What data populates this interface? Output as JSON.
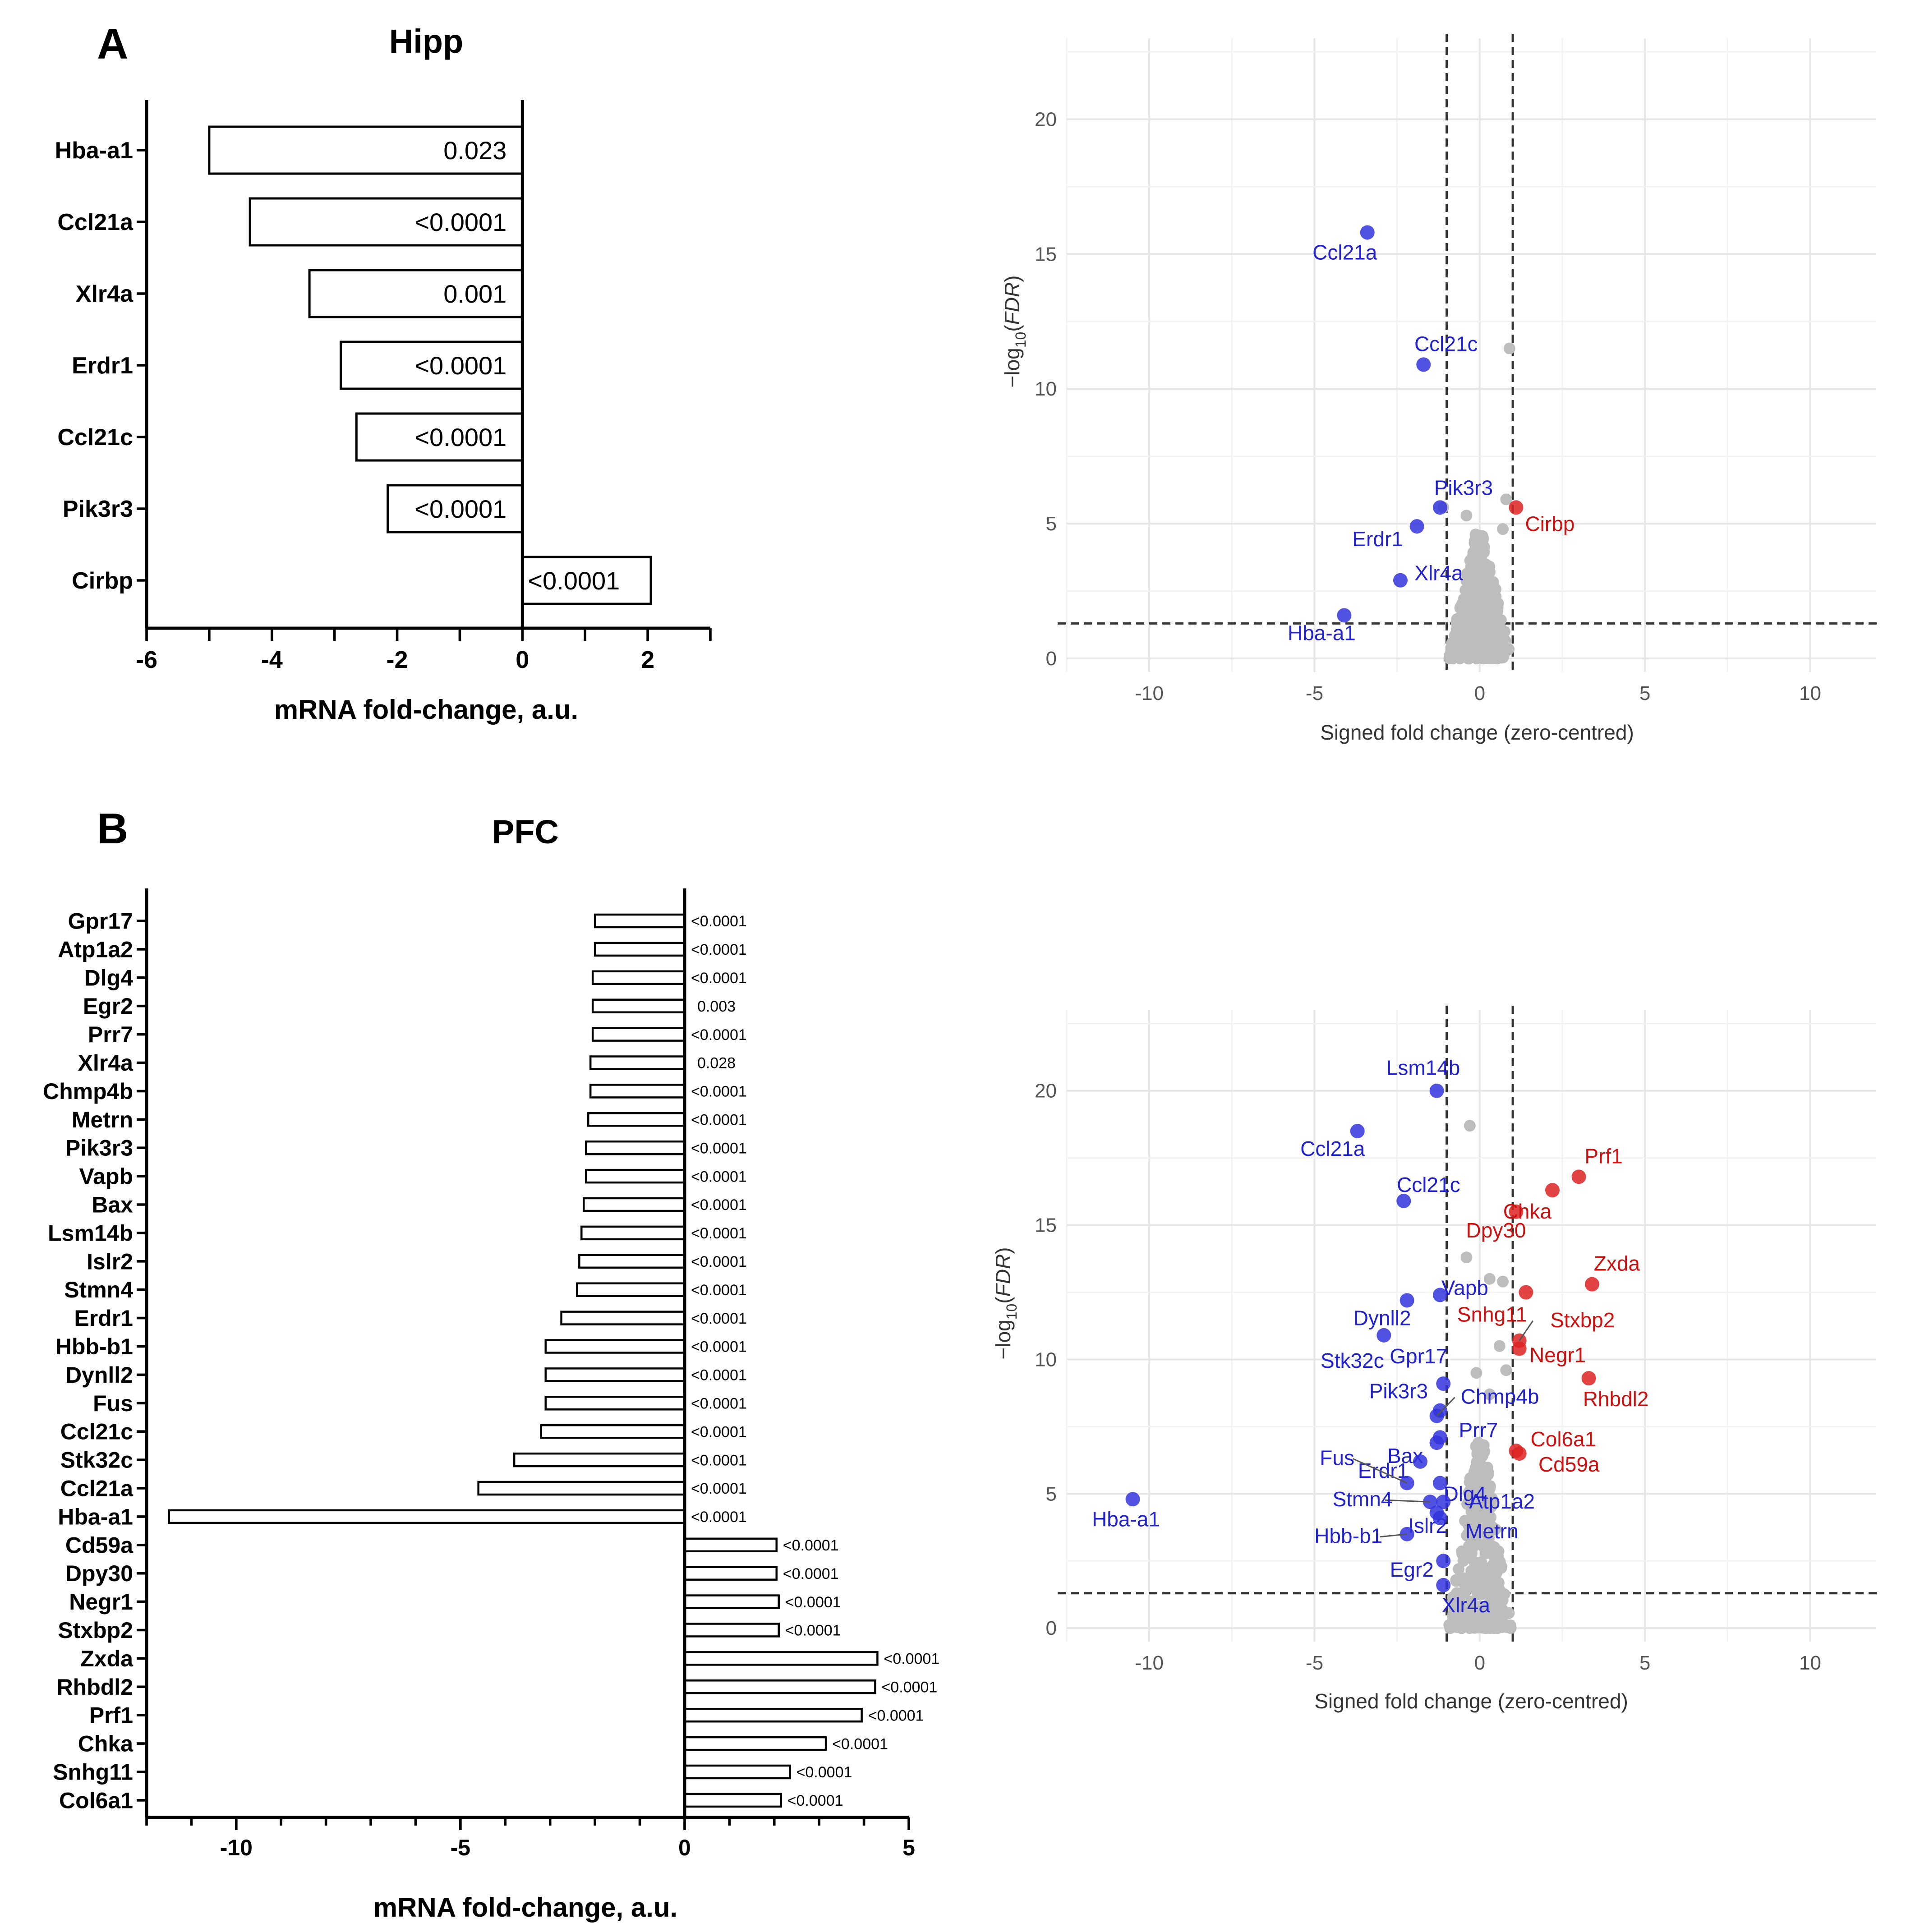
{
  "chart_data": [
    {
      "id": "A-bar",
      "type": "bar",
      "orientation": "horizontal",
      "panel_letter": "A",
      "title": "Hipp",
      "xlabel": "mRNA fold-change, a.u.",
      "xlim": [
        -6,
        3
      ],
      "xticks": [
        -6,
        -4,
        -2,
        0,
        2
      ],
      "categories": [
        "Hba-a1",
        "Ccl21a",
        "Xlr4a",
        "Erdr1",
        "Ccl21c",
        "Pik3r3",
        "Cirbp"
      ],
      "values": [
        -5.0,
        -4.35,
        -3.4,
        -2.9,
        -2.65,
        -2.15,
        2.05
      ],
      "labels": [
        "0.023",
        "<0.0001",
        "0.001",
        "<0.0001",
        "<0.0001",
        "<0.0001",
        "<0.0001"
      ]
    },
    {
      "id": "A-volcano",
      "type": "scatter",
      "xlabel": "Signed fold change (zero-centred)",
      "ylabel": "-log10(FDR)",
      "ylabel_parts": {
        "pre": "−log",
        "sub": "10",
        "open": "(",
        "ital": "FDR",
        "close": ")"
      },
      "xlim": [
        -12.5,
        12
      ],
      "ylim": [
        -0.5,
        23
      ],
      "xticks": [
        -10,
        -5,
        0,
        5,
        10
      ],
      "yticks": [
        0,
        5,
        10,
        15,
        20
      ],
      "vlines": [
        -1,
        1
      ],
      "hline": 1.3,
      "colors": {
        "down": "#3333dd",
        "up": "#dd2222",
        "ns": "#bdbdbd",
        "label_down": "#2222cc",
        "label_up": "#cc1111"
      },
      "points": [
        {
          "name": "Ccl21a",
          "x": -3.4,
          "y": 15.8,
          "group": "down"
        },
        {
          "name": "Ccl21c",
          "x": -1.7,
          "y": 10.9,
          "group": "down"
        },
        {
          "name": "Pik3r3",
          "x": -1.2,
          "y": 5.6,
          "group": "down"
        },
        {
          "name": "Erdr1",
          "x": -1.9,
          "y": 4.9,
          "group": "down"
        },
        {
          "name": "Xlr4a",
          "x": -2.4,
          "y": 2.9,
          "group": "down"
        },
        {
          "name": "Hba-a1",
          "x": -4.1,
          "y": 1.6,
          "group": "down"
        },
        {
          "name": "Cirbp",
          "x": 1.1,
          "y": 5.6,
          "group": "up"
        }
      ]
    },
    {
      "id": "B-bar",
      "type": "bar",
      "orientation": "horizontal",
      "panel_letter": "B",
      "title": "PFC",
      "xlabel": "mRNA fold-change, a.u.",
      "xlim": [
        -12,
        5
      ],
      "xticks": [
        -10,
        -5,
        0,
        5
      ],
      "categories": [
        "Gpr17",
        "Atp1a2",
        "Dlg4",
        "Egr2",
        "Prr7",
        "Xlr4a",
        "Chmp4b",
        "Metrn",
        "Pik3r3",
        "Vapb",
        "Bax",
        "Lsm14b",
        "Islr2",
        "Stmn4",
        "Erdr1",
        "Hbb-b1",
        "Dynll2",
        "Fus",
        "Ccl21c",
        "Stk32c",
        "Ccl21a",
        "Hba-a1",
        "Cd59a",
        "Dpy30",
        "Negr1",
        "Stxbp2",
        "Zxda",
        "Rhbdl2",
        "Prf1",
        "Chka",
        "Snhg11",
        "Col6a1"
      ],
      "values": [
        -2.0,
        -2.0,
        -2.05,
        -2.05,
        -2.05,
        -2.1,
        -2.1,
        -2.15,
        -2.2,
        -2.2,
        -2.25,
        -2.3,
        -2.35,
        -2.4,
        -2.75,
        -3.1,
        -3.1,
        -3.1,
        -3.2,
        -3.8,
        -4.6,
        -11.5,
        2.05,
        2.05,
        2.1,
        2.1,
        4.3,
        4.25,
        3.95,
        3.15,
        2.35,
        2.15
      ],
      "labels": [
        "<0.0001",
        "<0.0001",
        "<0.0001",
        "0.003",
        "<0.0001",
        "0.028",
        "<0.0001",
        "<0.0001",
        "<0.0001",
        "<0.0001",
        "<0.0001",
        "<0.0001",
        "<0.0001",
        "<0.0001",
        "<0.0001",
        "<0.0001",
        "<0.0001",
        "<0.0001",
        "<0.0001",
        "<0.0001",
        "<0.0001",
        "<0.0001",
        "<0.0001",
        "<0.0001",
        "<0.0001",
        "<0.0001",
        "<0.0001",
        "<0.0001",
        "<0.0001",
        "<0.0001",
        "<0.0001",
        "<0.0001"
      ]
    },
    {
      "id": "B-volcano",
      "type": "scatter",
      "xlabel": "Signed fold change (zero-centred)",
      "ylabel": "-log10(FDR)",
      "ylabel_parts": {
        "pre": "−log",
        "sub": "10",
        "open": "(",
        "ital": "FDR",
        "close": ")"
      },
      "xlim": [
        -12.5,
        12
      ],
      "ylim": [
        -0.5,
        23
      ],
      "xticks": [
        -10,
        -5,
        0,
        5,
        10
      ],
      "yticks": [
        0,
        5,
        10,
        15,
        20
      ],
      "vlines": [
        -1,
        1
      ],
      "hline": 1.3,
      "colors": {
        "down": "#3333dd",
        "up": "#dd2222",
        "ns": "#bdbdbd",
        "label_down": "#2222cc",
        "label_up": "#cc1111"
      },
      "points": [
        {
          "name": "Lsm14b",
          "x": -1.3,
          "y": 20.0,
          "group": "down"
        },
        {
          "name": "Ccl21a",
          "x": -3.7,
          "y": 18.5,
          "group": "down"
        },
        {
          "name": "Ccl21c",
          "x": -2.3,
          "y": 15.9,
          "group": "down"
        },
        {
          "name": "Vapb",
          "x": -1.2,
          "y": 12.4,
          "group": "down"
        },
        {
          "name": "Dynll2",
          "x": -2.2,
          "y": 12.2,
          "group": "down"
        },
        {
          "name": "Stk32c",
          "x": -2.9,
          "y": 10.9,
          "group": "down"
        },
        {
          "name": "Gpr17",
          "x": -1.1,
          "y": 9.1,
          "group": "down"
        },
        {
          "name": "Pik3r3",
          "x": -1.2,
          "y": 8.1,
          "group": "down"
        },
        {
          "name": "Chmp4b",
          "x": -1.3,
          "y": 7.9,
          "group": "down"
        },
        {
          "name": "Bax",
          "x": -1.3,
          "y": 6.9,
          "group": "down"
        },
        {
          "name": "Prr7",
          "x": -1.2,
          "y": 7.1,
          "group": "down"
        },
        {
          "name": "Erdr1",
          "x": -1.8,
          "y": 6.2,
          "group": "down"
        },
        {
          "name": "Dlg4",
          "x": -1.2,
          "y": 5.4,
          "group": "down"
        },
        {
          "name": "Fus",
          "x": -2.2,
          "y": 5.4,
          "group": "down"
        },
        {
          "name": "Stmn4",
          "x": -1.5,
          "y": 4.7,
          "group": "down"
        },
        {
          "name": "Atp1a2",
          "x": -1.1,
          "y": 4.7,
          "group": "down"
        },
        {
          "name": "Islr2",
          "x": -1.3,
          "y": 4.3,
          "group": "down"
        },
        {
          "name": "Metrn",
          "x": -1.2,
          "y": 4.1,
          "group": "down"
        },
        {
          "name": "Hbb-b1",
          "x": -2.2,
          "y": 3.5,
          "group": "down"
        },
        {
          "name": "Egr2",
          "x": -1.1,
          "y": 2.5,
          "group": "down"
        },
        {
          "name": "Xlr4a",
          "x": -1.1,
          "y": 1.6,
          "group": "down"
        },
        {
          "name": "Hba-a1",
          "x": -10.5,
          "y": 4.8,
          "group": "down"
        },
        {
          "name": "Prf1",
          "x": 3.0,
          "y": 16.8,
          "group": "up"
        },
        {
          "name": "Chka",
          "x": 1.1,
          "y": 15.5,
          "group": "up"
        },
        {
          "name": "Dpy30",
          "x": 2.2,
          "y": 16.3,
          "group": "up"
        },
        {
          "name": "Zxda",
          "x": 3.4,
          "y": 12.8,
          "group": "up"
        },
        {
          "name": "Snhg11",
          "x": 1.4,
          "y": 12.5,
          "group": "up"
        },
        {
          "name": "Stxbp2",
          "x": 1.2,
          "y": 10.7,
          "group": "up"
        },
        {
          "name": "Negr1",
          "x": 1.2,
          "y": 10.4,
          "group": "up"
        },
        {
          "name": "Rhbdl2",
          "x": 3.3,
          "y": 9.3,
          "group": "up"
        },
        {
          "name": "Col6a1",
          "x": 1.1,
          "y": 6.6,
          "group": "up"
        },
        {
          "name": "Cd59a",
          "x": 1.2,
          "y": 6.5,
          "group": "up"
        }
      ]
    }
  ]
}
